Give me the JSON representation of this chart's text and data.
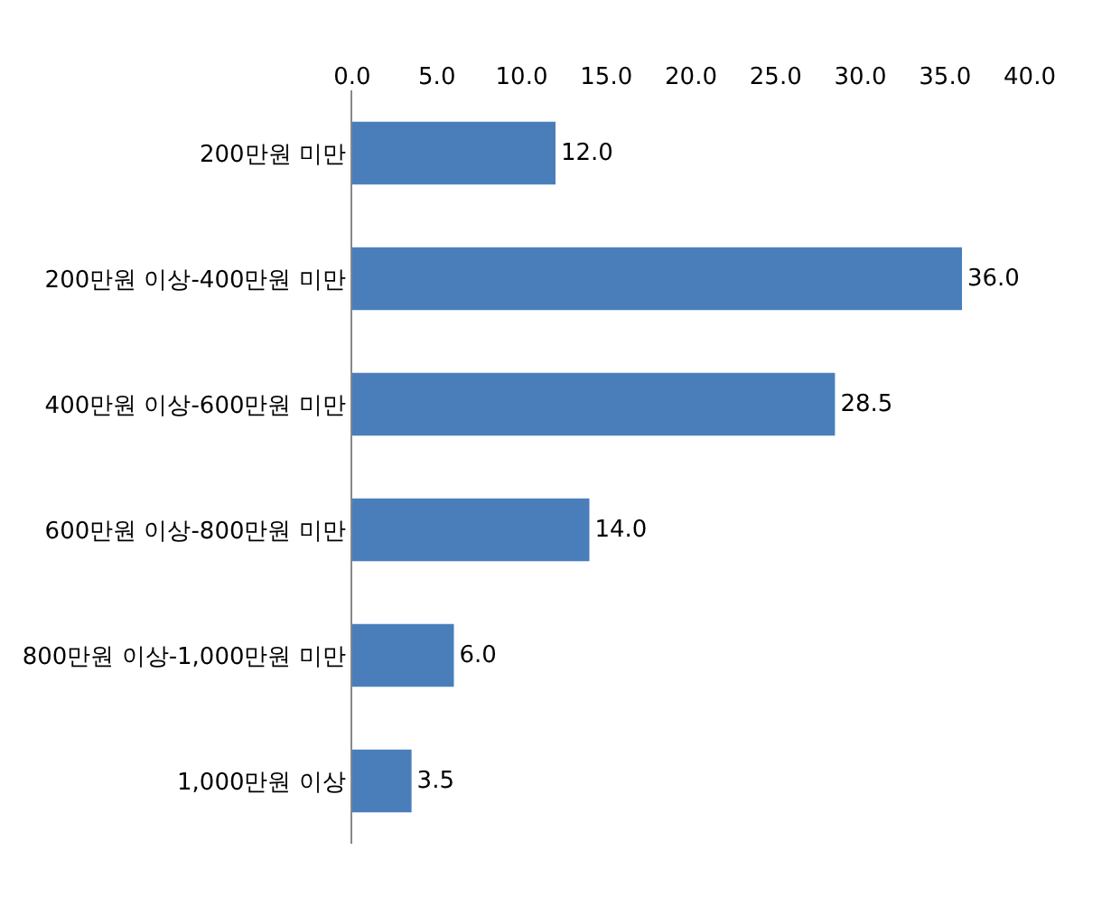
{
  "chart_data": {
    "type": "bar",
    "orientation": "horizontal",
    "categories": [
      "200만원 미만",
      "200만원 이상-400만원 미만",
      "400만원 이상-600만원 미만",
      "600만원 이상-800만원 미만",
      "800만원 이상-1,000만원 미만",
      "1,000만원 이상"
    ],
    "values": [
      12.0,
      36.0,
      28.5,
      14.0,
      6.0,
      3.5
    ],
    "value_labels": [
      "12.0",
      "36.0",
      "28.5",
      "14.0",
      "6.0",
      "3.5"
    ],
    "color": "#4a7ebb",
    "xlim": [
      0,
      40
    ],
    "xticks": [
      {
        "value": 0,
        "label": "0.0"
      },
      {
        "value": 5,
        "label": "5.0"
      },
      {
        "value": 10,
        "label": "10.0"
      },
      {
        "value": 15,
        "label": "15.0"
      },
      {
        "value": 20,
        "label": "20.0"
      },
      {
        "value": 25,
        "label": "25.0"
      },
      {
        "value": 30,
        "label": "30.0"
      },
      {
        "value": 35,
        "label": "35.0"
      },
      {
        "value": 40,
        "label": "40.0"
      }
    ],
    "grid": false,
    "legend": false
  }
}
